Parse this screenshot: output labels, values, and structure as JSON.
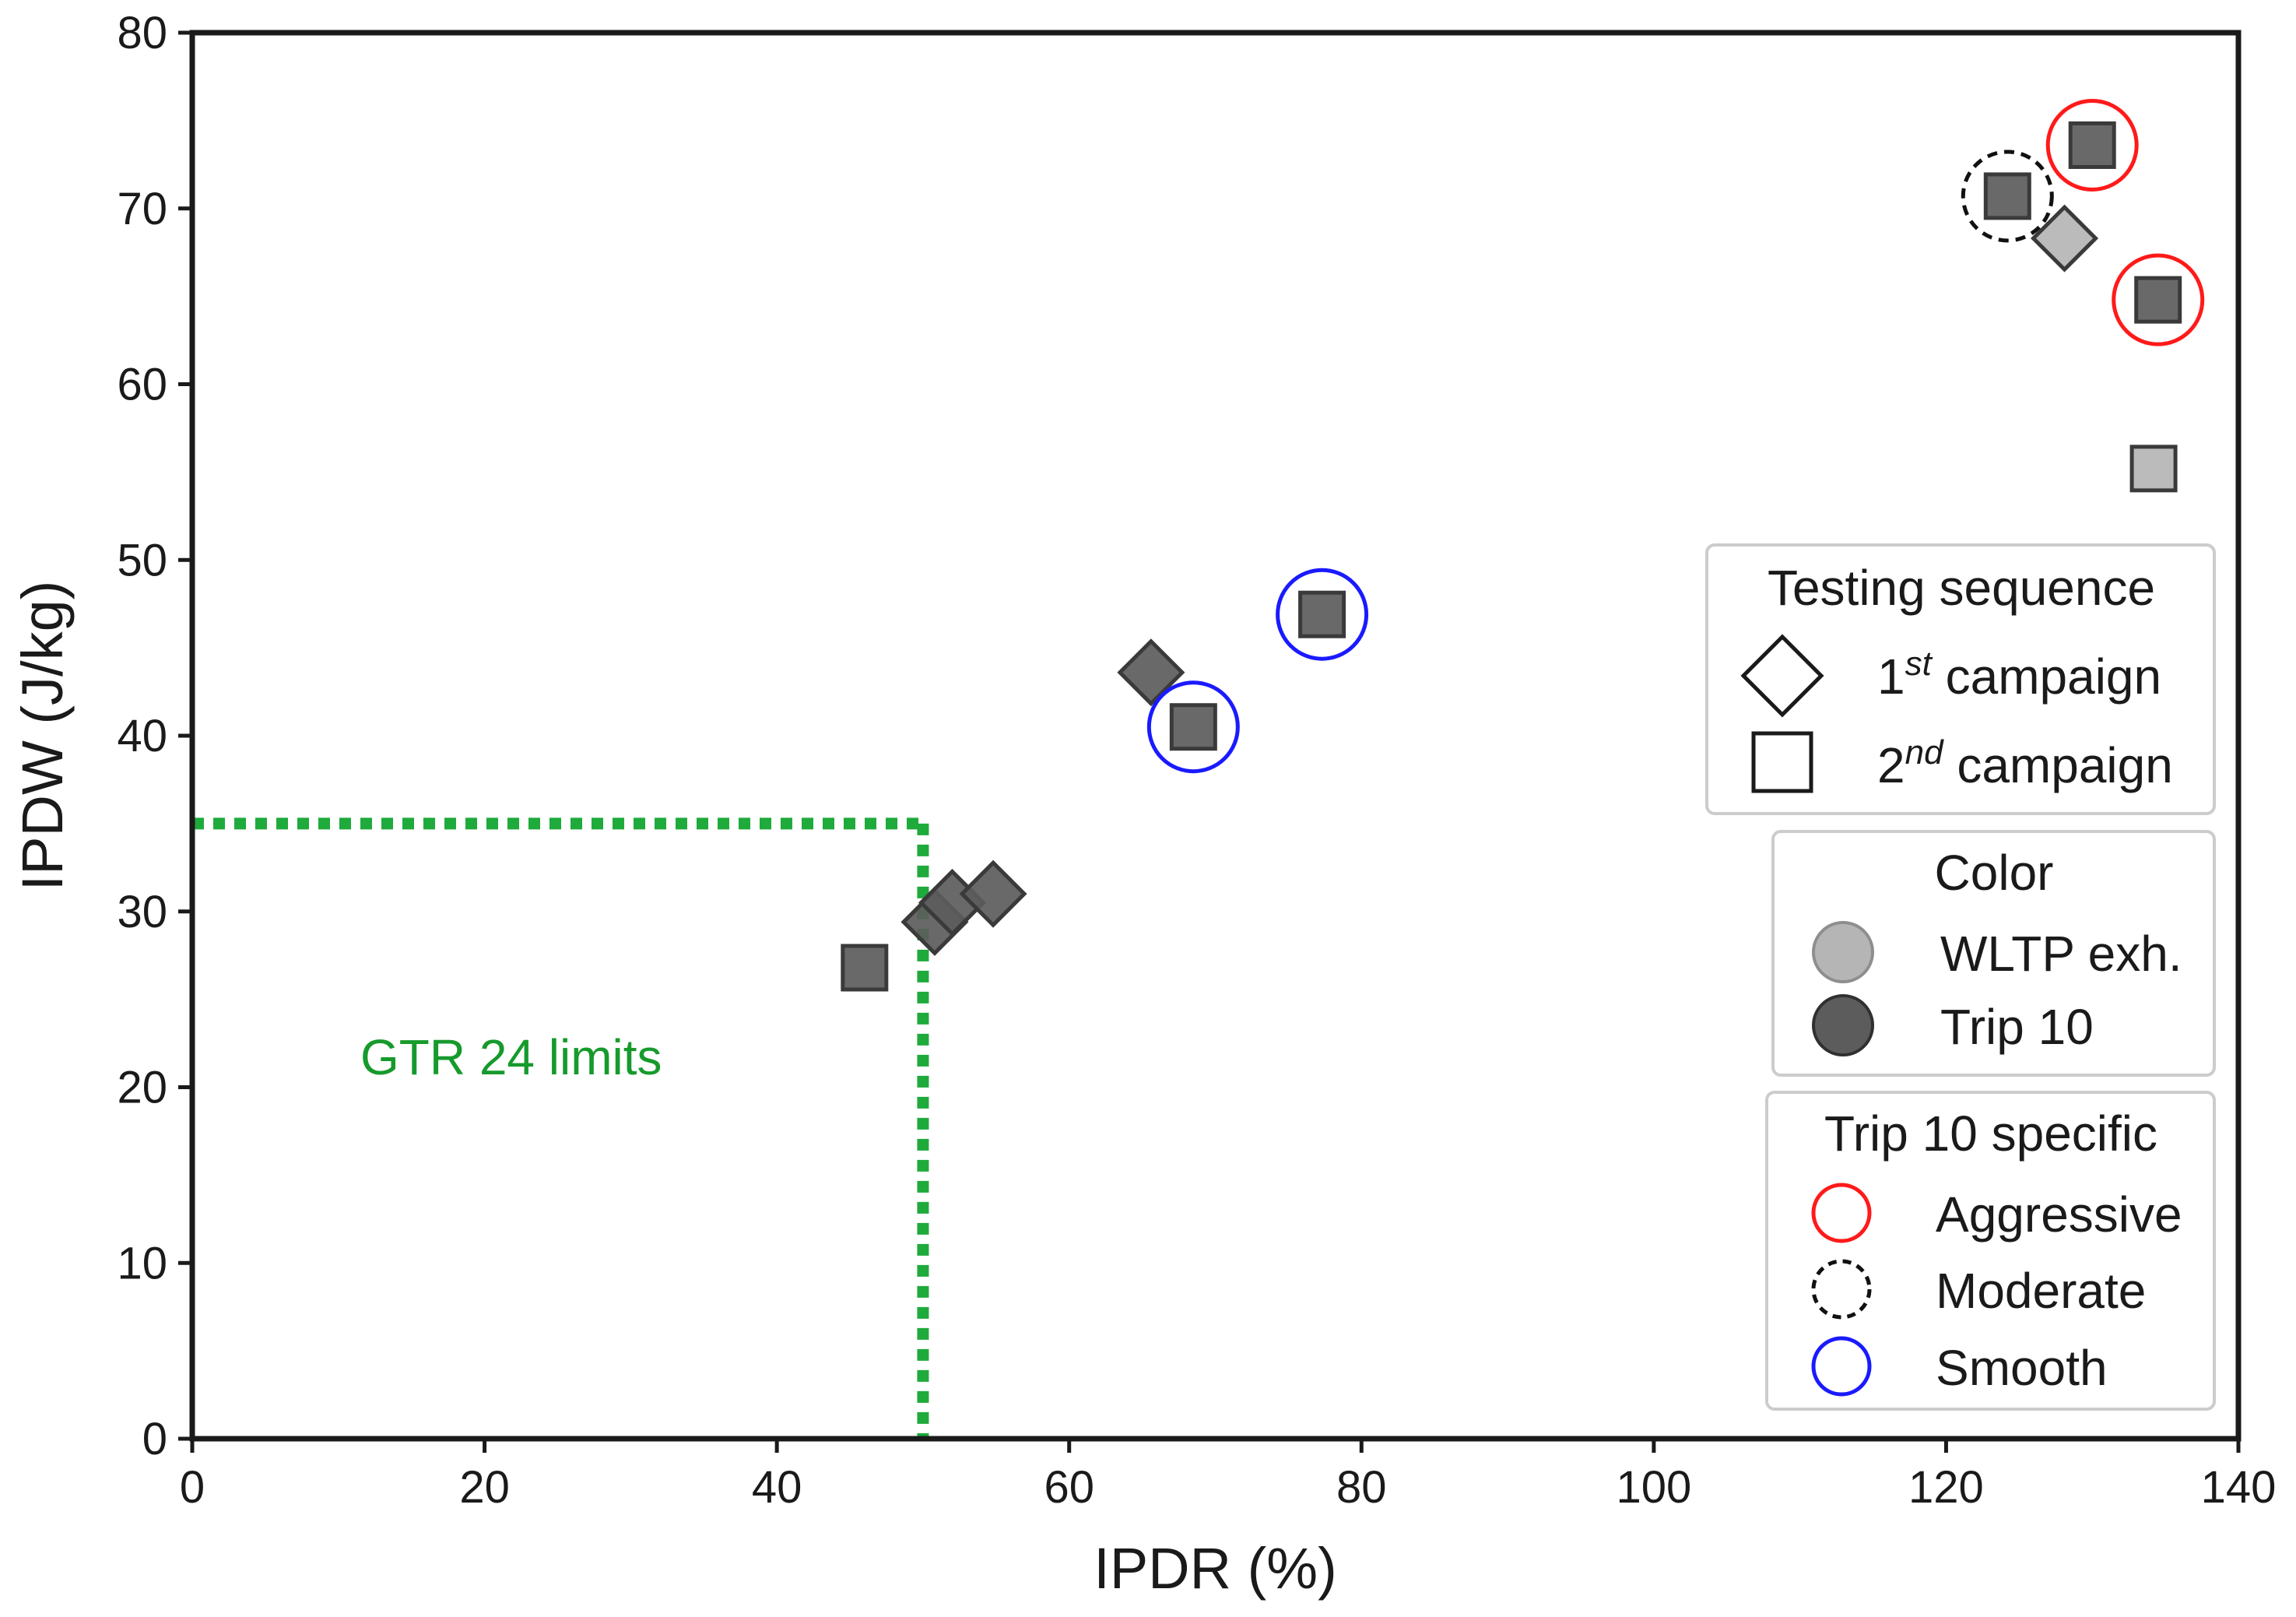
{
  "chart_data": {
    "type": "scatter",
    "xlabel": "IPDR (%)",
    "ylabel": "IPDW (J/kg)",
    "xlim": [
      0,
      140
    ],
    "ylim": [
      0,
      80
    ],
    "xticks": [
      0,
      20,
      40,
      60,
      80,
      100,
      120,
      140
    ],
    "yticks": [
      0,
      10,
      20,
      30,
      40,
      50,
      60,
      70,
      80
    ],
    "grid": false,
    "reference_lines": {
      "label": "GTR 24 limits",
      "ipdr_limit": 50,
      "ipdw_limit": 35,
      "color": "#1faa3c"
    },
    "annotation_position": {
      "x": 11.5,
      "y": 21.7
    },
    "points": [
      {
        "x": 46.0,
        "y": 26.8,
        "shape": "square",
        "color": "trip10"
      },
      {
        "x": 50.8,
        "y": 29.4,
        "shape": "diamond",
        "color": "trip10"
      },
      {
        "x": 52.0,
        "y": 30.5,
        "shape": "diamond",
        "color": "trip10"
      },
      {
        "x": 54.8,
        "y": 31.0,
        "shape": "diamond",
        "color": "trip10"
      },
      {
        "x": 65.6,
        "y": 43.6,
        "shape": "diamond",
        "color": "trip10"
      },
      {
        "x": 68.5,
        "y": 40.5,
        "shape": "square",
        "color": "trip10",
        "style": "smooth"
      },
      {
        "x": 77.3,
        "y": 46.9,
        "shape": "square",
        "color": "trip10",
        "style": "smooth"
      },
      {
        "x": 124.2,
        "y": 70.7,
        "shape": "square",
        "color": "trip10",
        "style": "moderate"
      },
      {
        "x": 128.1,
        "y": 68.3,
        "shape": "diamond",
        "color": "wltp"
      },
      {
        "x": 130.0,
        "y": 73.6,
        "shape": "square",
        "color": "trip10",
        "style": "aggressive"
      },
      {
        "x": 134.5,
        "y": 64.8,
        "shape": "square",
        "color": "trip10",
        "style": "aggressive"
      },
      {
        "x": 134.2,
        "y": 55.2,
        "shape": "square",
        "color": "wltp"
      }
    ],
    "colors": {
      "trip10": "#5c5c5c",
      "wltp": "#b5b5b5",
      "aggressive": "#ff1a1a",
      "moderate": "#111111",
      "smooth": "#1a1aff",
      "axis": "#1a1a1a",
      "legend_border": "#cccccc"
    },
    "legend": {
      "placement": "right-center",
      "sections": [
        {
          "key": "testing",
          "title": "Testing sequence",
          "entries": [
            {
              "key": "first",
              "base": "1",
              "sup": "st",
              "suffix": " campaign",
              "marker": "diamond"
            },
            {
              "key": "second",
              "base": "2",
              "sup": "nd",
              "suffix": " campaign",
              "marker": "square"
            }
          ]
        },
        {
          "key": "color",
          "title": "Color",
          "entries": [
            {
              "key": "wltp",
              "label": "WLTP exh.",
              "marker": "circle-wltp"
            },
            {
              "key": "trip10",
              "label": "Trip 10",
              "marker": "circle-trip10"
            }
          ]
        },
        {
          "key": "style",
          "title": "Trip 10 specific",
          "entries": [
            {
              "key": "aggressive",
              "label": "Aggressive",
              "marker": "ring-aggressive"
            },
            {
              "key": "moderate",
              "label": "Moderate",
              "marker": "ring-moderate"
            },
            {
              "key": "smooth",
              "label": "Smooth",
              "marker": "ring-smooth"
            }
          ]
        }
      ]
    }
  }
}
